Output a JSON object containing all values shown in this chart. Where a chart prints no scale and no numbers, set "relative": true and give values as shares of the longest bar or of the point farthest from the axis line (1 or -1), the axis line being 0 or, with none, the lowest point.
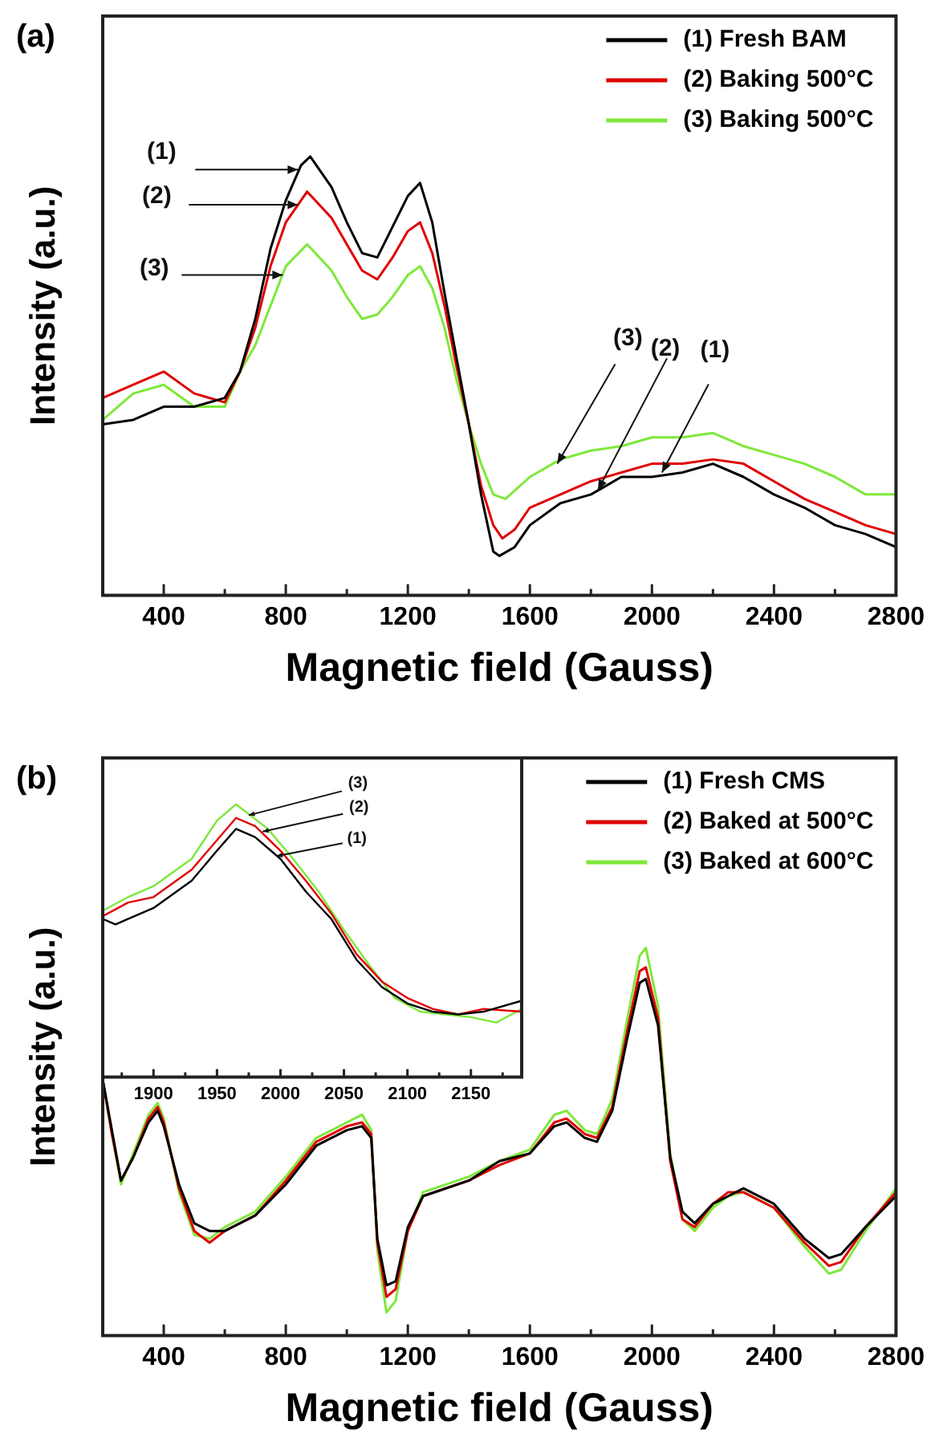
{
  "chart_data": [
    {
      "type": "line",
      "title": "(a)",
      "xlabel": "Magnetic field (Gauss)",
      "ylabel": "Intensity (a.u.)",
      "relative": true,
      "legend": "top right",
      "tick_labels": "x",
      "xlim": [
        200,
        2800
      ],
      "xticks": [
        400,
        {
          "value": 600,
          "label": null
        },
        800,
        {
          "value": 1000,
          "label": null
        },
        1200,
        {
          "value": 1400,
          "label": null
        },
        1600,
        {
          "value": 1800,
          "label": null
        },
        2000,
        {
          "value": 2200,
          "label": null
        },
        2400,
        {
          "value": 2600,
          "label": null
        },
        2800
      ],
      "series": [
        {
          "name": "(1) Fresh BAM",
          "color": "#000000",
          "x": [
            200,
            300,
            400,
            500,
            600,
            650,
            700,
            750,
            800,
            850,
            880,
            950,
            1000,
            1050,
            1100,
            1150,
            1200,
            1240,
            1280,
            1320,
            1360,
            1400,
            1440,
            1480,
            1500,
            1550,
            1600,
            1700,
            1800,
            1900,
            2000,
            2100,
            2200,
            2300,
            2400,
            2500,
            2600,
            2700,
            2800
          ],
          "values": [
            0.39,
            0.4,
            0.43,
            0.43,
            0.45,
            0.51,
            0.63,
            0.79,
            0.9,
            0.98,
            1,
            0.93,
            0.85,
            0.78,
            0.77,
            0.84,
            0.91,
            0.94,
            0.85,
            0.69,
            0.54,
            0.39,
            0.23,
            0.1,
            0.09,
            0.11,
            0.16,
            0.21,
            0.23,
            0.27,
            0.27,
            0.28,
            0.3,
            0.27,
            0.23,
            0.2,
            0.16,
            0.14,
            0.11
          ]
        },
        {
          "name": "(2) Baking 500°C",
          "color": "#e00000",
          "x": [
            200,
            300,
            400,
            500,
            600,
            650,
            700,
            750,
            800,
            870,
            950,
            1000,
            1050,
            1100,
            1150,
            1200,
            1240,
            1280,
            1320,
            1360,
            1400,
            1440,
            1480,
            1510,
            1550,
            1600,
            1700,
            1800,
            1900,
            2000,
            2100,
            2200,
            2300,
            2400,
            2500,
            2600,
            2700,
            2800
          ],
          "values": [
            0.45,
            0.48,
            0.51,
            0.46,
            0.44,
            0.51,
            0.61,
            0.75,
            0.85,
            0.92,
            0.86,
            0.8,
            0.74,
            0.72,
            0.77,
            0.83,
            0.85,
            0.78,
            0.66,
            0.52,
            0.39,
            0.25,
            0.16,
            0.13,
            0.15,
            0.2,
            0.23,
            0.26,
            0.28,
            0.3,
            0.3,
            0.31,
            0.3,
            0.26,
            0.22,
            0.19,
            0.16,
            0.14
          ]
        },
        {
          "name": "(3) Baking 500°C",
          "color": "#7ee83a",
          "x": [
            200,
            300,
            400,
            500,
            600,
            650,
            700,
            750,
            800,
            870,
            950,
            1000,
            1050,
            1100,
            1150,
            1200,
            1240,
            1280,
            1320,
            1360,
            1400,
            1440,
            1480,
            1520,
            1600,
            1700,
            1800,
            1900,
            2000,
            2100,
            2200,
            2300,
            2400,
            2500,
            2600,
            2700,
            2800
          ],
          "values": [
            0.4,
            0.46,
            0.48,
            0.43,
            0.43,
            0.51,
            0.57,
            0.66,
            0.75,
            0.8,
            0.74,
            0.68,
            0.63,
            0.64,
            0.68,
            0.73,
            0.75,
            0.7,
            0.61,
            0.49,
            0.39,
            0.3,
            0.23,
            0.22,
            0.27,
            0.31,
            0.33,
            0.34,
            0.36,
            0.36,
            0.37,
            0.34,
            0.32,
            0.3,
            0.27,
            0.23,
            0.23
          ]
        }
      ],
      "annotations": [
        {
          "text": "(1)",
          "x": 840,
          "y": 0.97
        },
        {
          "text": "(2)",
          "x": 840,
          "y": 0.89
        },
        {
          "text": "(3)",
          "x": 790,
          "y": 0.73
        },
        {
          "text": "(3)",
          "x": 1690,
          "y": 0.3
        },
        {
          "text": "(2)",
          "x": 1823,
          "y": 0.24
        },
        {
          "text": "(1)",
          "x": 2033,
          "y": 0.28
        }
      ]
    },
    {
      "type": "line",
      "title": "(b)",
      "xlabel": "Magnetic field (Gauss)",
      "ylabel": "Intensity (a.u.)",
      "relative": true,
      "legend": "top right",
      "tick_labels": "x",
      "xlim": [
        200,
        2800
      ],
      "xticks": [
        400,
        {
          "value": 600,
          "label": null
        },
        800,
        {
          "value": 1000,
          "label": null
        },
        1200,
        {
          "value": 1400,
          "label": null
        },
        1600,
        {
          "value": 1800,
          "label": null
        },
        2000,
        {
          "value": 2200,
          "label": null
        },
        2400,
        {
          "value": 2600,
          "label": null
        },
        2800
      ],
      "x": [
        200,
        230,
        260,
        300,
        350,
        380,
        400,
        450,
        500,
        550,
        600,
        700,
        800,
        900,
        1000,
        1050,
        1080,
        1100,
        1130,
        1160,
        1200,
        1250,
        1400,
        1500,
        1600,
        1680,
        1720,
        1780,
        1820,
        1870,
        1920,
        1960,
        1980,
        2020,
        2060,
        2100,
        2140,
        2200,
        2250,
        2300,
        2400,
        2500,
        2580,
        2620,
        2700,
        2800
      ],
      "series": [
        {
          "name": "(1) Fresh CMS",
          "color": "#000000",
          "values": [
            0.66,
            0.53,
            0.4,
            0.46,
            0.55,
            0.58,
            0.54,
            0.39,
            0.29,
            0.27,
            0.27,
            0.31,
            0.39,
            0.49,
            0.53,
            0.54,
            0.51,
            0.25,
            0.13,
            0.14,
            0.28,
            0.36,
            0.4,
            0.45,
            0.47,
            0.54,
            0.55,
            0.51,
            0.5,
            0.58,
            0.77,
            0.91,
            0.92,
            0.8,
            0.46,
            0.32,
            0.29,
            0.34,
            0.36,
            0.38,
            0.34,
            0.25,
            0.2,
            0.21,
            0.28,
            0.36
          ]
        },
        {
          "name": "(2) Baked at 500°C",
          "color": "#e00000",
          "values": [
            0.66,
            0.52,
            0.4,
            0.46,
            0.56,
            0.59,
            0.55,
            0.38,
            0.27,
            0.24,
            0.27,
            0.31,
            0.4,
            0.5,
            0.54,
            0.55,
            0.52,
            0.24,
            0.1,
            0.12,
            0.27,
            0.36,
            0.4,
            0.44,
            0.47,
            0.55,
            0.56,
            0.52,
            0.51,
            0.59,
            0.79,
            0.94,
            0.95,
            0.82,
            0.45,
            0.3,
            0.28,
            0.34,
            0.37,
            0.37,
            0.33,
            0.24,
            0.18,
            0.19,
            0.28,
            0.37
          ]
        },
        {
          "name": "(3) Baked at 600°C",
          "color": "#7ee83a",
          "values": [
            0.66,
            0.52,
            0.39,
            0.47,
            0.57,
            0.6,
            0.56,
            0.37,
            0.26,
            0.25,
            0.28,
            0.32,
            0.41,
            0.51,
            0.55,
            0.57,
            0.53,
            0.22,
            0.06,
            0.09,
            0.27,
            0.37,
            0.41,
            0.45,
            0.48,
            0.57,
            0.58,
            0.53,
            0.52,
            0.61,
            0.82,
            0.98,
            1,
            0.85,
            0.47,
            0.3,
            0.27,
            0.33,
            0.36,
            0.37,
            0.33,
            0.23,
            0.16,
            0.17,
            0.27,
            0.38
          ]
        }
      ]
    },
    {
      "type": "line",
      "relative": true,
      "tick_labels": "x",
      "xlim": [
        1860,
        2190
      ],
      "xticks": [
        {
          "value": 1875,
          "label": null
        },
        1900,
        {
          "value": 1925,
          "label": null
        },
        1950,
        {
          "value": 1975,
          "label": null
        },
        2000,
        {
          "value": 2025,
          "label": null
        },
        2050,
        {
          "value": 2075,
          "label": null
        },
        2100,
        {
          "value": 2125,
          "label": null
        },
        2150,
        {
          "value": 2175,
          "label": null
        }
      ],
      "series": [
        {
          "color": "#000000",
          "x": [
            1860,
            1870,
            1900,
            1930,
            1950,
            1965,
            1980,
            2000,
            2020,
            2040,
            2060,
            2080,
            2100,
            2120,
            2140,
            2160,
            2190
          ],
          "values": [
            0.58,
            0.56,
            0.62,
            0.72,
            0.83,
            0.91,
            0.88,
            0.8,
            0.68,
            0.58,
            0.43,
            0.33,
            0.27,
            0.24,
            0.23,
            0.24,
            0.28
          ]
        },
        {
          "color": "#e00000",
          "x": [
            1860,
            1880,
            1900,
            1930,
            1965,
            1980,
            2000,
            2020,
            2040,
            2060,
            2080,
            2100,
            2120,
            2140,
            2160,
            2190
          ],
          "values": [
            0.59,
            0.64,
            0.66,
            0.76,
            0.95,
            0.92,
            0.83,
            0.72,
            0.6,
            0.45,
            0.35,
            0.29,
            0.25,
            0.23,
            0.25,
            0.24
          ]
        },
        {
          "color": "#7ee83a",
          "x": [
            1860,
            1880,
            1900,
            1930,
            1950,
            1965,
            1990,
            2010,
            2030,
            2050,
            2070,
            2090,
            2110,
            2130,
            2150,
            2170,
            2190
          ],
          "values": [
            0.61,
            0.66,
            0.7,
            0.8,
            0.94,
            1,
            0.91,
            0.8,
            0.68,
            0.54,
            0.41,
            0.29,
            0.24,
            0.23,
            0.22,
            0.2,
            0.25
          ]
        }
      ],
      "annotations": [
        {
          "text": "(3)",
          "x": 1975,
          "y": 0.96
        },
        {
          "text": "(2)",
          "x": 1986,
          "y": 0.9
        },
        {
          "text": "(1)",
          "x": 1997,
          "y": 0.81
        }
      ]
    }
  ]
}
